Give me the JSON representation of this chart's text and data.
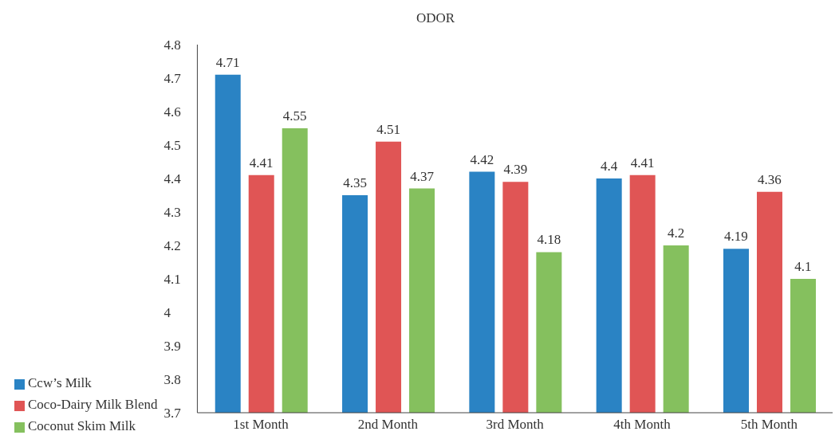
{
  "chart_data": {
    "type": "bar",
    "title": "ODOR",
    "categories": [
      "1st Month",
      "2nd Month",
      "3rd Month",
      "4th Month",
      "5th Month"
    ],
    "series": [
      {
        "name": "Ccw’s Milk",
        "color": "#2a83c4",
        "values": [
          4.71,
          4.35,
          4.42,
          4.4,
          4.19
        ]
      },
      {
        "name": "Coco-Dairy Milk Blend",
        "color": "#e05555",
        "values": [
          4.41,
          4.51,
          4.39,
          4.41,
          4.36
        ]
      },
      {
        "name": "Coconut Skim Milk",
        "color": "#85c05e",
        "values": [
          4.55,
          4.37,
          4.18,
          4.2,
          4.1
        ]
      }
    ],
    "ylim": [
      3.7,
      4.8
    ],
    "yticks": [
      3.7,
      3.8,
      3.9,
      4,
      4.1,
      4.2,
      4.3,
      4.4,
      4.5,
      4.6,
      4.7,
      4.8
    ],
    "grid": false,
    "legend": "bottom left",
    "data_labels": true
  }
}
